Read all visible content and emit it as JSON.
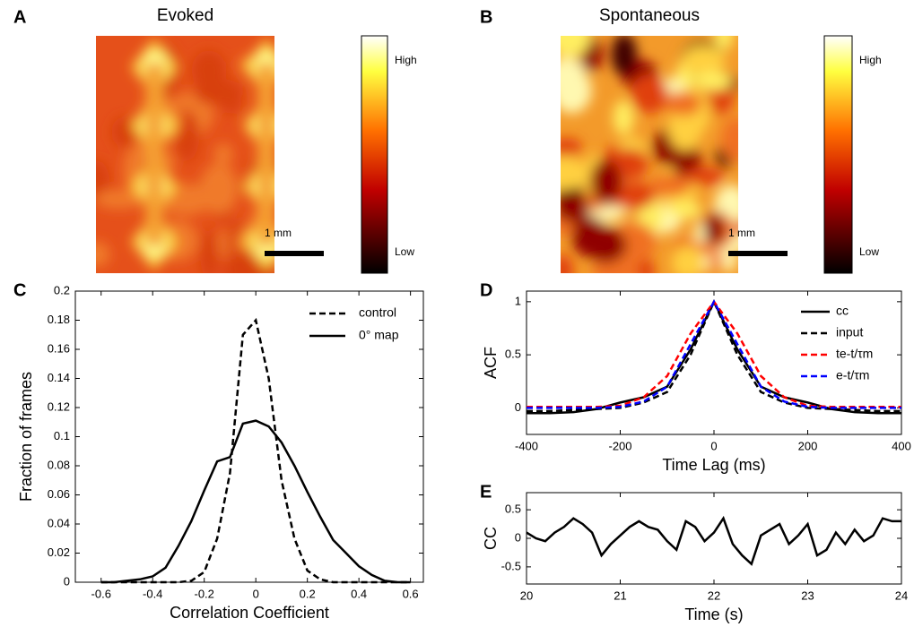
{
  "chart_data": [
    {
      "type": "heatmap",
      "panel_label": "A",
      "title": "Evoked",
      "colorbar_labels": [
        "High",
        "Low"
      ],
      "scalebar_label": "1 mm"
    },
    {
      "type": "heatmap",
      "panel_label": "B",
      "title": "Spontaneous",
      "colorbar_labels": [
        "High",
        "Low"
      ],
      "scalebar_label": "1 mm"
    },
    {
      "type": "line",
      "panel_label": "C",
      "x_label": "Correlation Coefficient",
      "y_label": "Fraction of frames",
      "x": [
        -0.6,
        -0.55,
        -0.5,
        -0.45,
        -0.4,
        -0.35,
        -0.3,
        -0.25,
        -0.2,
        -0.15,
        -0.1,
        -0.05,
        0,
        0.05,
        0.1,
        0.15,
        0.2,
        0.25,
        0.3,
        0.35,
        0.4,
        0.45,
        0.5,
        0.55,
        0.6
      ],
      "series": [
        {
          "name": "control",
          "color": "#000000",
          "style": "dashed",
          "values": [
            0,
            0,
            0,
            0,
            0,
            0,
            0,
            0.001,
            0.007,
            0.03,
            0.075,
            0.17,
            0.18,
            0.14,
            0.07,
            0.03,
            0.008,
            0.002,
            0,
            0,
            0,
            0,
            0,
            0,
            0
          ]
        },
        {
          "name": "0° map",
          "color": "#000000",
          "style": "solid",
          "values": [
            0,
            0,
            0.001,
            0.002,
            0.004,
            0.01,
            0.025,
            0.042,
            0.063,
            0.083,
            0.086,
            0.109,
            0.111,
            0.107,
            0.096,
            0.08,
            0.062,
            0.045,
            0.029,
            0.02,
            0.011,
            0.005,
            0.001,
            0,
            0
          ]
        }
      ],
      "xlim": [
        -0.7,
        0.65
      ],
      "ylim": [
        0,
        0.2
      ],
      "xticks": [
        -0.6,
        -0.4,
        -0.2,
        0,
        0.2,
        0.4,
        0.6
      ],
      "yticks": [
        0,
        0.02,
        0.04,
        0.06,
        0.08,
        0.1,
        0.12,
        0.14,
        0.16,
        0.18,
        0.2
      ],
      "legend": "upper right"
    },
    {
      "type": "line",
      "panel_label": "D",
      "x_label": "Time Lag (ms)",
      "y_label": "ACF",
      "x": [
        -400,
        -350,
        -300,
        -250,
        -200,
        -150,
        -100,
        -50,
        0,
        50,
        100,
        150,
        200,
        250,
        300,
        350,
        400
      ],
      "series": [
        {
          "name": "cc",
          "color": "#000000",
          "style": "solid",
          "values": [
            -0.05,
            -0.05,
            -0.04,
            -0.01,
            0.05,
            0.1,
            0.2,
            0.55,
            1,
            0.55,
            0.2,
            0.1,
            0.05,
            -0.01,
            -0.04,
            -0.05,
            -0.05
          ]
        },
        {
          "name": "input",
          "color": "#000000",
          "style": "dashed",
          "values": [
            -0.03,
            -0.03,
            -0.02,
            -0.01,
            0,
            0.05,
            0.15,
            0.5,
            1,
            0.5,
            0.15,
            0.05,
            0,
            -0.01,
            -0.02,
            -0.03,
            -0.03
          ]
        },
        {
          "name": "te-t/τm",
          "color": "#ff0000",
          "style": "dashed",
          "values": [
            0.01,
            0.01,
            0.01,
            0.01,
            0.02,
            0.1,
            0.3,
            0.7,
            1,
            0.7,
            0.3,
            0.1,
            0.02,
            0.01,
            0.01,
            0.01,
            0.01
          ]
        },
        {
          "name": "e-t/τm",
          "color": "#0000ff",
          "style": "dashed",
          "values": [
            0,
            0,
            0,
            0,
            0.01,
            0.06,
            0.2,
            0.6,
            1,
            0.6,
            0.2,
            0.06,
            0.01,
            0,
            0,
            0,
            0
          ]
        }
      ],
      "xlim": [
        -400,
        400
      ],
      "ylim": [
        -0.25,
        1.1
      ],
      "xticks": [
        -400,
        -200,
        0,
        200,
        400
      ],
      "yticks": [
        0,
        0.5,
        1
      ],
      "legend": "upper right"
    },
    {
      "type": "line",
      "panel_label": "E",
      "x_label": "Time (s)",
      "y_label": "CC",
      "x": [
        20,
        20.1,
        20.2,
        20.3,
        20.4,
        20.5,
        20.6,
        20.7,
        20.8,
        20.9,
        21,
        21.1,
        21.2,
        21.3,
        21.4,
        21.5,
        21.6,
        21.7,
        21.8,
        21.9,
        22,
        22.1,
        22.2,
        22.3,
        22.4,
        22.5,
        22.6,
        22.7,
        22.8,
        22.9,
        23,
        23.1,
        23.2,
        23.3,
        23.4,
        23.5,
        23.6,
        23.7,
        23.8,
        23.9,
        24
      ],
      "series": [
        {
          "color": "#000000",
          "style": "solid",
          "values": [
            0.1,
            0,
            -0.05,
            0.1,
            0.2,
            0.35,
            0.25,
            0.1,
            -0.3,
            -0.1,
            0.05,
            0.2,
            0.3,
            0.2,
            0.15,
            -0.05,
            -0.2,
            0.3,
            0.2,
            -0.05,
            0.1,
            0.35,
            -0.1,
            -0.3,
            -0.45,
            0.05,
            0.15,
            0.25,
            -0.1,
            0.05,
            0.25,
            -0.3,
            -0.2,
            0.1,
            -0.1,
            0.15,
            -0.05,
            0.05,
            0.35,
            0.3,
            0.3
          ]
        }
      ],
      "xlim": [
        20,
        24
      ],
      "ylim": [
        -0.8,
        0.8
      ],
      "xticks": [
        20,
        21,
        22,
        23,
        24
      ],
      "yticks": [
        -0.5,
        0,
        0.5
      ]
    }
  ]
}
